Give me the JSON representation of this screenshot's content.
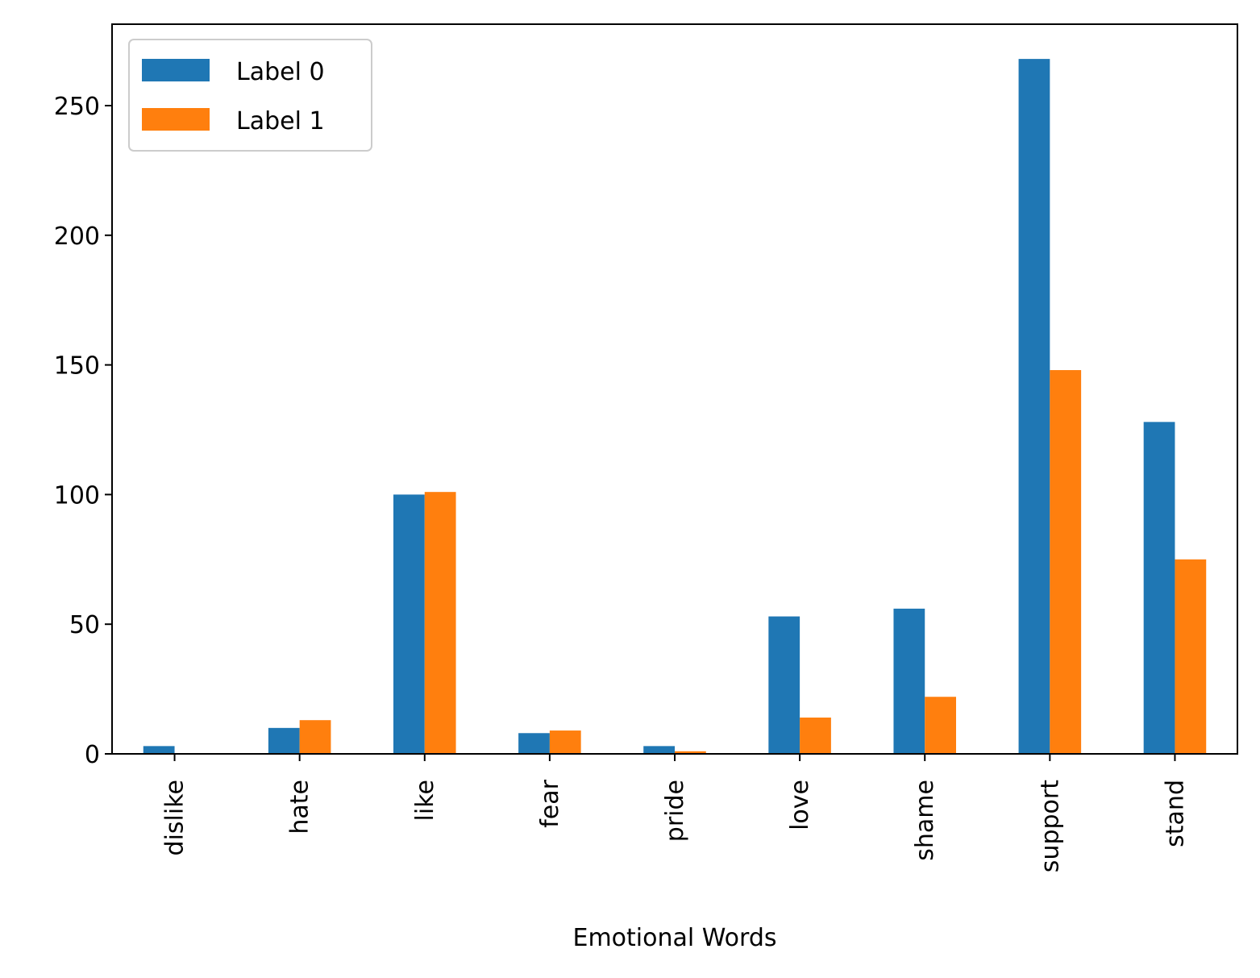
{
  "chart_data": {
    "type": "bar",
    "title": "",
    "xlabel": "Emotional Words",
    "ylabel": "",
    "categories": [
      "dislike",
      "hate",
      "like",
      "fear",
      "pride",
      "love",
      "shame",
      "support",
      "stand"
    ],
    "series": [
      {
        "name": "Label 0",
        "color": "#1f77b4",
        "values": [
          3,
          10,
          100,
          8,
          3,
          53,
          56,
          268,
          128
        ]
      },
      {
        "name": "Label 1",
        "color": "#ff7f0e",
        "values": [
          0,
          13,
          101,
          9,
          1,
          14,
          22,
          148,
          75
        ]
      }
    ],
    "ylim": [
      0,
      281.4
    ],
    "yticks": [
      0,
      50,
      100,
      150,
      200,
      250
    ],
    "grid": false,
    "legend_position": "top-left"
  }
}
